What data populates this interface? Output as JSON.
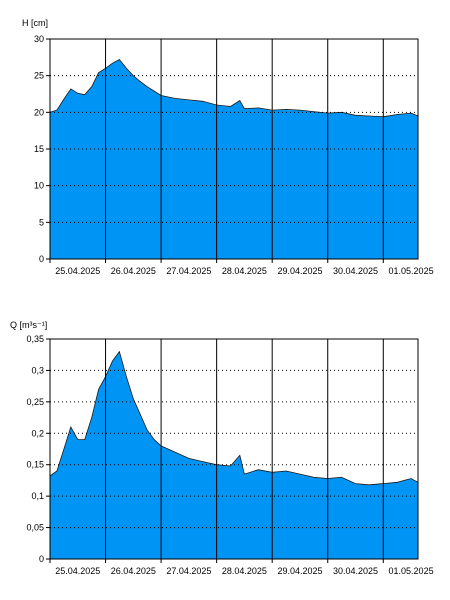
{
  "chart_data": [
    {
      "type": "area",
      "ylabel": "H [cm]",
      "ylim": [
        0,
        30
      ],
      "yticks": [
        0,
        5,
        10,
        15,
        20,
        25,
        30
      ],
      "xlim": [
        "2025-04-25 00:00",
        "2025-05-01 15:00"
      ],
      "date_ticks": [
        "25.04.2025",
        "26.04.2025",
        "27.04.2025",
        "28.04.2025",
        "29.04.2025",
        "30.04.2025",
        "01.05.2025"
      ],
      "grid": "dotted horizontal, solid vertical at day boundaries",
      "color": "#0095f5",
      "x": [
        "2025-04-25 00:00",
        "2025-04-25 03:00",
        "2025-04-25 06:00",
        "2025-04-25 09:00",
        "2025-04-25 12:00",
        "2025-04-25 15:00",
        "2025-04-25 18:00",
        "2025-04-25 21:00",
        "2025-04-26 00:00",
        "2025-04-26 03:00",
        "2025-04-26 06:00",
        "2025-04-26 09:00",
        "2025-04-26 12:00",
        "2025-04-26 15:00",
        "2025-04-26 18:00",
        "2025-04-26 21:00",
        "2025-04-27 00:00",
        "2025-04-27 06:00",
        "2025-04-27 12:00",
        "2025-04-27 18:00",
        "2025-04-28 00:00",
        "2025-04-28 06:00",
        "2025-04-28 10:00",
        "2025-04-28 12:00",
        "2025-04-28 18:00",
        "2025-04-29 00:00",
        "2025-04-29 06:00",
        "2025-04-29 12:00",
        "2025-04-29 18:00",
        "2025-04-30 00:00",
        "2025-04-30 06:00",
        "2025-04-30 12:00",
        "2025-04-30 18:00",
        "2025-05-01 00:00",
        "2025-05-01 06:00",
        "2025-05-01 12:00",
        "2025-05-01 15:00"
      ],
      "values": [
        20.0,
        20.3,
        21.8,
        23.2,
        22.6,
        22.4,
        23.5,
        25.4,
        26.0,
        26.7,
        27.2,
        26.0,
        25.0,
        24.2,
        23.5,
        22.9,
        22.3,
        21.9,
        21.7,
        21.5,
        21.0,
        20.8,
        21.6,
        20.5,
        20.6,
        20.3,
        20.4,
        20.3,
        20.1,
        19.9,
        20.0,
        19.6,
        19.5,
        19.4,
        19.7,
        19.9,
        19.5
      ]
    },
    {
      "type": "area",
      "ylabel": "Q [m³s⁻¹]",
      "ylim": [
        0,
        0.35
      ],
      "yticks": [
        "0",
        "0,05",
        "0,1",
        "0,15",
        "0,2",
        "0,25",
        "0,3",
        "0,35"
      ],
      "xlim": [
        "2025-04-25 00:00",
        "2025-05-01 15:00"
      ],
      "date_ticks": [
        "25.04.2025",
        "26.04.2025",
        "27.04.2025",
        "28.04.2025",
        "29.04.2025",
        "30.04.2025",
        "01.05.2025"
      ],
      "grid": "dotted horizontal, solid vertical at day boundaries",
      "color": "#0095f5",
      "x": [
        "2025-04-25 00:00",
        "2025-04-25 03:00",
        "2025-04-25 06:00",
        "2025-04-25 09:00",
        "2025-04-25 12:00",
        "2025-04-25 15:00",
        "2025-04-25 18:00",
        "2025-04-25 21:00",
        "2025-04-26 00:00",
        "2025-04-26 03:00",
        "2025-04-26 06:00",
        "2025-04-26 09:00",
        "2025-04-26 12:00",
        "2025-04-26 15:00",
        "2025-04-26 18:00",
        "2025-04-26 21:00",
        "2025-04-27 00:00",
        "2025-04-27 06:00",
        "2025-04-27 12:00",
        "2025-04-27 18:00",
        "2025-04-28 00:00",
        "2025-04-28 06:00",
        "2025-04-28 10:00",
        "2025-04-28 12:00",
        "2025-04-28 18:00",
        "2025-04-29 00:00",
        "2025-04-29 06:00",
        "2025-04-29 12:00",
        "2025-04-29 18:00",
        "2025-04-30 00:00",
        "2025-04-30 06:00",
        "2025-04-30 12:00",
        "2025-04-30 18:00",
        "2025-05-01 00:00",
        "2025-05-01 06:00",
        "2025-05-01 12:00",
        "2025-05-01 15:00"
      ],
      "values": [
        0.132,
        0.14,
        0.175,
        0.21,
        0.19,
        0.19,
        0.225,
        0.27,
        0.29,
        0.315,
        0.33,
        0.29,
        0.255,
        0.23,
        0.205,
        0.19,
        0.18,
        0.17,
        0.16,
        0.155,
        0.15,
        0.148,
        0.165,
        0.135,
        0.142,
        0.138,
        0.14,
        0.135,
        0.13,
        0.128,
        0.13,
        0.12,
        0.118,
        0.12,
        0.122,
        0.128,
        0.122
      ]
    }
  ]
}
